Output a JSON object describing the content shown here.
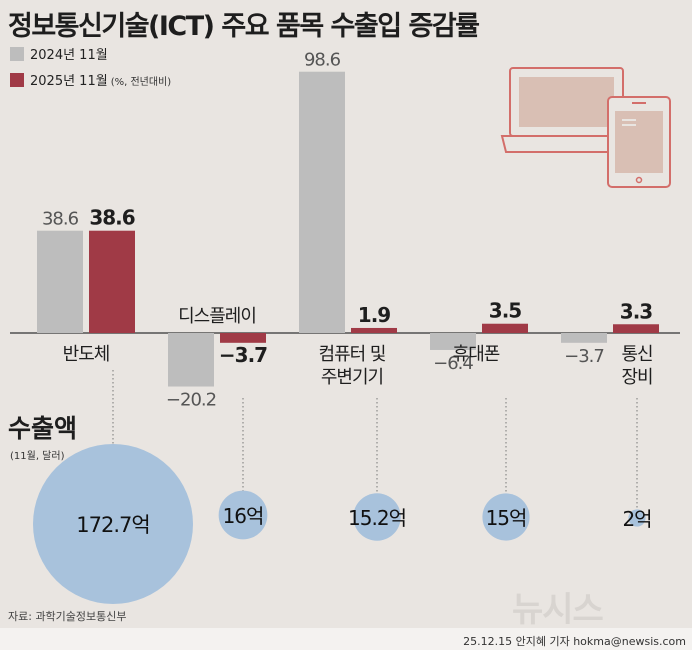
{
  "title": "정보통신기술(ICT) 주요 품목 수출입 증감률",
  "legend": {
    "prev": "2024년 11월",
    "curr": "2025년 11월",
    "note": "(%, 전년대비)"
  },
  "colors": {
    "prev": "#bdbdbd",
    "curr": "#a03a46",
    "bubble": "#a8c2dc",
    "device": "#d36e6a",
    "device_fill": "#d9bfb4",
    "background": "#e9e5e1"
  },
  "chart_data": {
    "type": "bar",
    "unit": "%",
    "categories": [
      {
        "lines": [
          "반도체"
        ],
        "label_pos": "below"
      },
      {
        "lines": [
          "디스플레이"
        ],
        "label_pos": "above"
      },
      {
        "lines": [
          "컴퓨터 및",
          "주변기기"
        ],
        "label_pos": "below"
      },
      {
        "lines": [
          "휴대폰"
        ],
        "label_pos": "below"
      },
      {
        "lines": [
          "통신",
          "장비"
        ],
        "label_pos": "below"
      }
    ],
    "series": [
      {
        "name": "2024년 11월",
        "values": [
          38.6,
          -20.2,
          98.6,
          -6.4,
          -3.7
        ],
        "labels": [
          "38.6",
          "-20.2",
          "98.6",
          "-6.4",
          "-3.7"
        ]
      },
      {
        "name": "2025년 11월",
        "values": [
          38.6,
          -3.7,
          1.9,
          3.5,
          3.3
        ],
        "labels": [
          "38.6",
          "-3.7",
          "1.9",
          "3.5",
          "3.3"
        ]
      }
    ],
    "ylim": [
      -21,
      100
    ]
  },
  "exports": {
    "title": "수출액",
    "subtitle": "(11월, 달러)",
    "unit": "억 달러",
    "values": [
      172.7,
      16,
      15.2,
      15,
      2
    ],
    "labels": [
      "172.7억",
      "16억",
      "15.2억",
      "15억",
      "2억"
    ]
  },
  "source": "자료: 과학기술정보통신부",
  "credit": "25.12.15 안지혜 기자 hokma@newsis.com",
  "watermark": "뉴시스"
}
